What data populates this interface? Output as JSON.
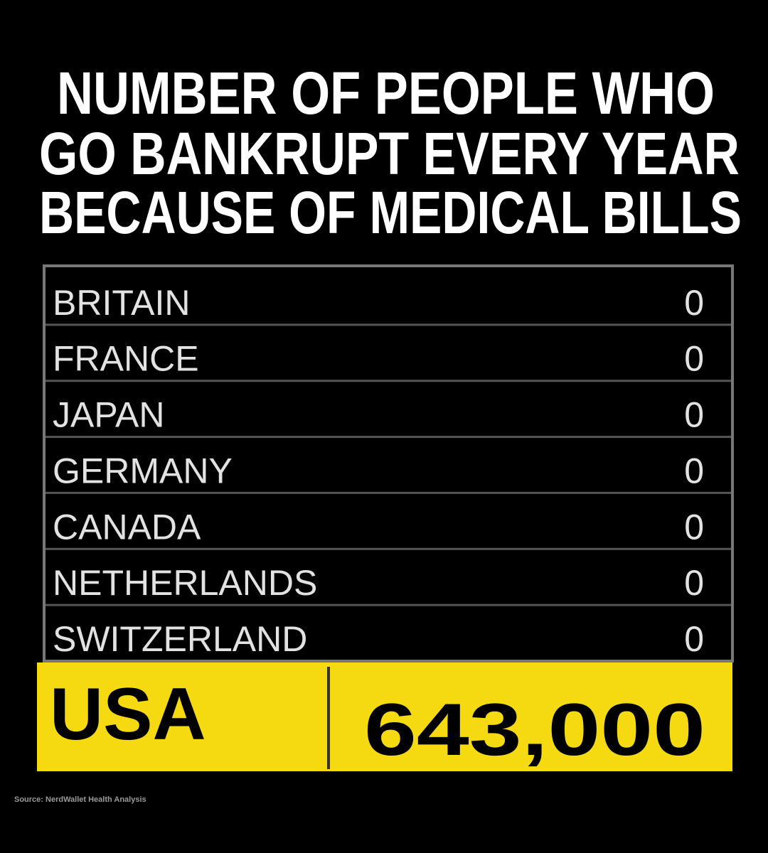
{
  "header": {
    "title_lines": [
      "NUMBER OF PEOPLE WHO",
      "GO BANKRUPT EVERY YEAR",
      "BECAUSE OF MEDICAL BILLS"
    ]
  },
  "table": {
    "rows": [
      [
        "BRITAIN",
        "0"
      ],
      [
        "FRANCE",
        "0"
      ],
      [
        "JAPAN",
        "0"
      ],
      [
        "GERMANY",
        "0"
      ],
      [
        "CANADA",
        "0"
      ],
      [
        "NETHERLANDS",
        "0"
      ],
      [
        "SWITZERLAND",
        "0"
      ]
    ],
    "highlight": [
      "USA",
      "643,000"
    ]
  },
  "footer": {
    "source": "Source: NerdWallet Health Analysis"
  }
}
